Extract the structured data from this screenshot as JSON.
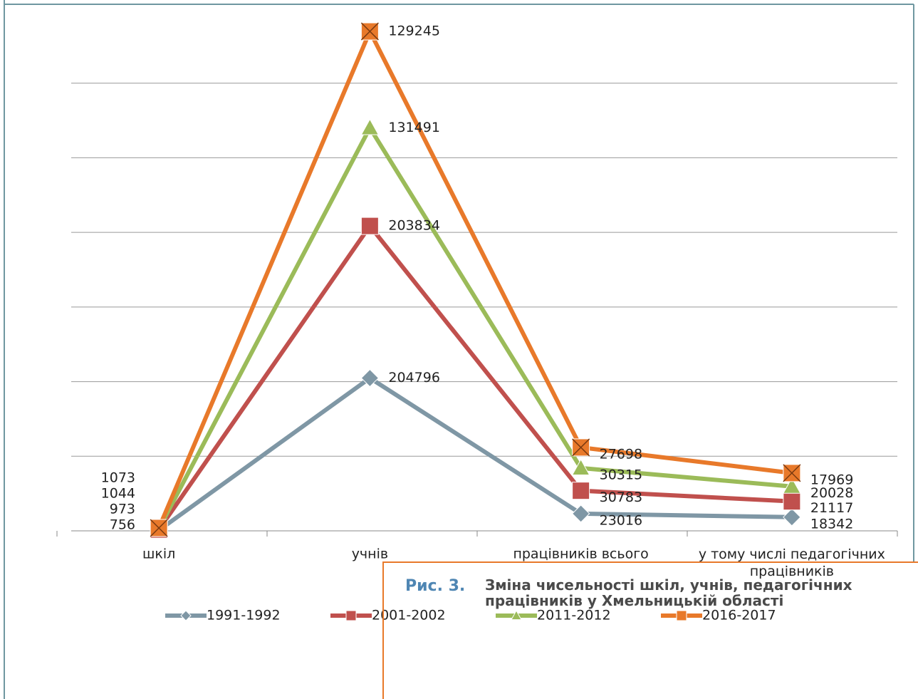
{
  "chart_data": {
    "type": "line",
    "stacked": true,
    "categories": [
      "шкіл",
      "учнів",
      "працівників всього",
      "у тому числі педагогічних працівників"
    ],
    "series": [
      {
        "name": "1991-1992",
        "color": "#7f97a5",
        "marker": "diamond",
        "values": [
          756,
          204796,
          23016,
          18342
        ]
      },
      {
        "name": "2001-2002",
        "color": "#c0504d",
        "marker": "square",
        "values": [
          973,
          203834,
          30783,
          21117
        ]
      },
      {
        "name": "2011-2012",
        "color": "#9bbb59",
        "marker": "triangle",
        "values": [
          1044,
          131491,
          30315,
          20028
        ]
      },
      {
        "name": "2016-2017",
        "color": "#e8792a",
        "marker": "x-square",
        "values": [
          1073,
          129245,
          27698,
          17969
        ]
      }
    ],
    "ylim": [
      0,
      700000
    ],
    "yticks": [
      0,
      100000,
      200000,
      300000,
      400000,
      500000,
      600000
    ],
    "ytick_labels": false,
    "grid": true,
    "legend": "bottom"
  },
  "caption": {
    "label": "Рис. 3.",
    "text": "Зміна чисельності шкіл, учнів, педагогічних працівників у Хмельницькій області"
  }
}
